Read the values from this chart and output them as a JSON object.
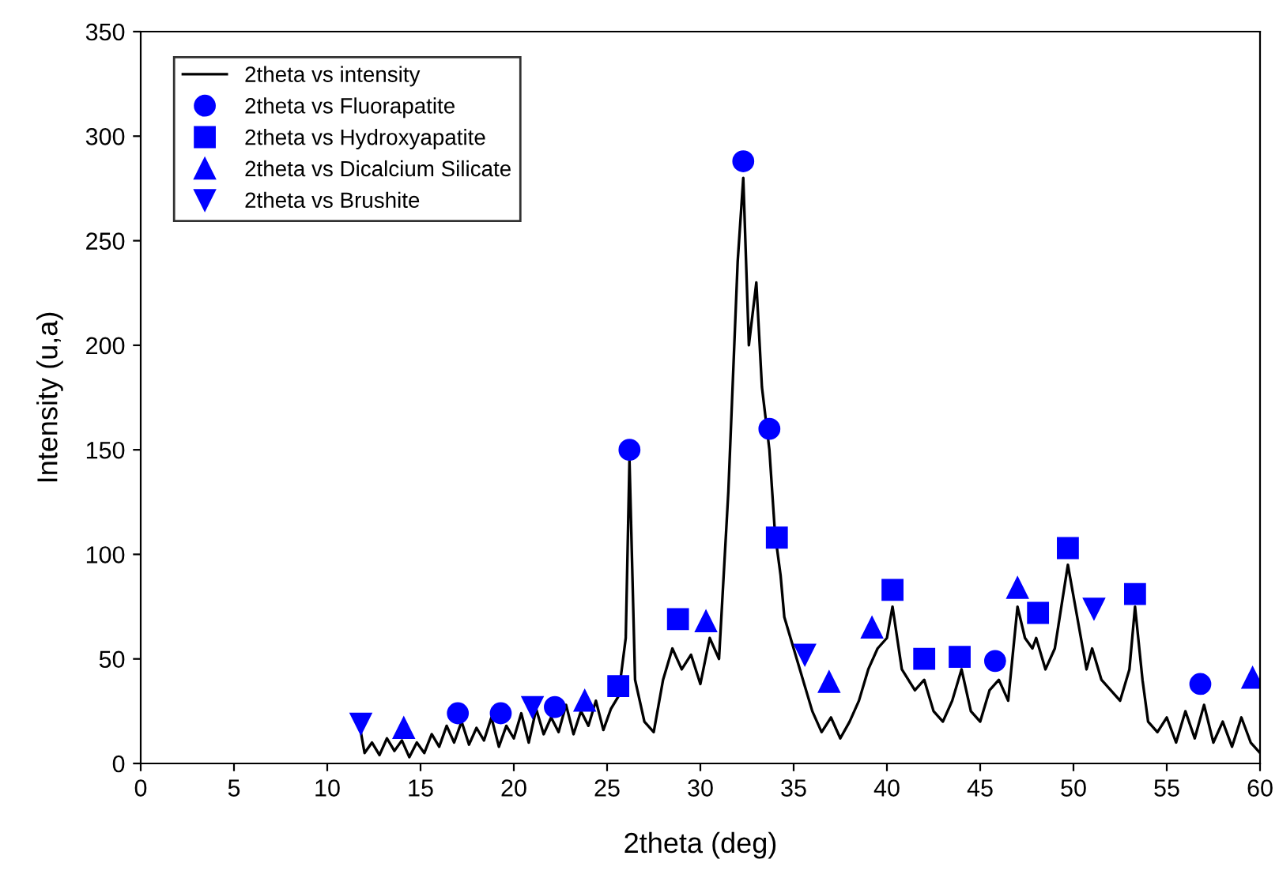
{
  "chart_data": {
    "type": "line",
    "xlabel": "2theta (deg)",
    "ylabel": "Intensity (u,a)",
    "xlim": [
      0,
      60
    ],
    "ylim": [
      0,
      350
    ],
    "xticks": [
      0,
      5,
      10,
      15,
      20,
      25,
      30,
      35,
      40,
      45,
      50,
      55,
      60
    ],
    "yticks": [
      0,
      50,
      100,
      150,
      200,
      250,
      300,
      350
    ],
    "grid": false,
    "legend": "top left",
    "series": [
      {
        "name": "2theta vs intensity",
        "color": "#000000",
        "marker": "none",
        "x": [
          11.8,
          12.0,
          12.4,
          12.8,
          13.2,
          13.6,
          14.0,
          14.4,
          14.8,
          15.2,
          15.6,
          16.0,
          16.4,
          16.8,
          17.2,
          17.6,
          18.0,
          18.4,
          18.8,
          19.2,
          19.6,
          20.0,
          20.4,
          20.8,
          21.2,
          21.6,
          22.0,
          22.4,
          22.8,
          23.2,
          23.6,
          24.0,
          24.4,
          24.8,
          25.2,
          25.6,
          26.0,
          26.2,
          26.5,
          27.0,
          27.5,
          28.0,
          28.5,
          29.0,
          29.5,
          30.0,
          30.5,
          31.0,
          31.5,
          32.0,
          32.3,
          32.6,
          33.0,
          33.3,
          33.7,
          34.0,
          34.3,
          34.5,
          35.0,
          35.5,
          36.0,
          36.5,
          37.0,
          37.5,
          38.0,
          38.5,
          39.0,
          39.5,
          40.0,
          40.3,
          40.8,
          41.5,
          42.0,
          42.5,
          43.0,
          43.5,
          44.0,
          44.5,
          45.0,
          45.5,
          46.0,
          46.5,
          47.0,
          47.4,
          47.8,
          48.0,
          48.5,
          49.0,
          49.7,
          50.2,
          50.7,
          51.0,
          51.5,
          52.0,
          52.5,
          53.0,
          53.3,
          53.7,
          54.0,
          54.5,
          55.0,
          55.5,
          56.0,
          56.5,
          57.0,
          57.5,
          58.0,
          58.5,
          59.0,
          59.5,
          60.0
        ],
        "values": [
          15,
          5,
          10,
          4,
          12,
          6,
          11,
          3,
          10,
          5,
          14,
          8,
          18,
          10,
          20,
          9,
          17,
          11,
          22,
          8,
          18,
          12,
          24,
          10,
          26,
          14,
          22,
          15,
          28,
          14,
          25,
          18,
          30,
          16,
          26,
          32,
          60,
          145,
          40,
          20,
          15,
          40,
          55,
          45,
          52,
          38,
          60,
          50,
          130,
          240,
          280,
          200,
          230,
          180,
          150,
          110,
          90,
          70,
          55,
          40,
          25,
          15,
          22,
          12,
          20,
          30,
          45,
          55,
          60,
          75,
          45,
          35,
          40,
          25,
          20,
          30,
          45,
          25,
          20,
          35,
          40,
          30,
          75,
          60,
          55,
          60,
          45,
          55,
          95,
          70,
          45,
          55,
          40,
          35,
          30,
          45,
          75,
          40,
          20,
          15,
          22,
          10,
          25,
          12,
          28,
          10,
          20,
          8,
          22,
          10,
          5
        ]
      },
      {
        "name": "2theta vs Fluorapatite",
        "type": "scatter",
        "color": "#0000ff",
        "marker": "circle",
        "x": [
          17.0,
          19.3,
          22.2,
          26.2,
          32.3,
          33.7,
          45.8,
          56.8
        ],
        "values": [
          24,
          24,
          27,
          150,
          288,
          160,
          49,
          38
        ]
      },
      {
        "name": "2theta vs Hydroxyapatite",
        "type": "scatter",
        "color": "#0000ff",
        "marker": "square",
        "x": [
          25.6,
          28.8,
          34.1,
          40.3,
          42.0,
          43.9,
          48.1,
          49.7,
          53.3
        ],
        "values": [
          37,
          69,
          108,
          83,
          50,
          51,
          72,
          103,
          81
        ]
      },
      {
        "name": "2theta vs Dicalcium Silicate",
        "type": "scatter",
        "color": "#0000ff",
        "marker": "triangle",
        "x": [
          14.1,
          23.8,
          30.3,
          36.9,
          39.2,
          47.0,
          59.6
        ],
        "values": [
          17,
          30,
          68,
          39,
          65,
          84,
          41
        ]
      },
      {
        "name": "2theta vs Brushite",
        "type": "scatter",
        "color": "#0000ff",
        "marker": "triangle_down",
        "x": [
          11.8,
          21.0,
          35.6,
          51.1
        ],
        "values": [
          19,
          27,
          52,
          74
        ]
      }
    ]
  }
}
